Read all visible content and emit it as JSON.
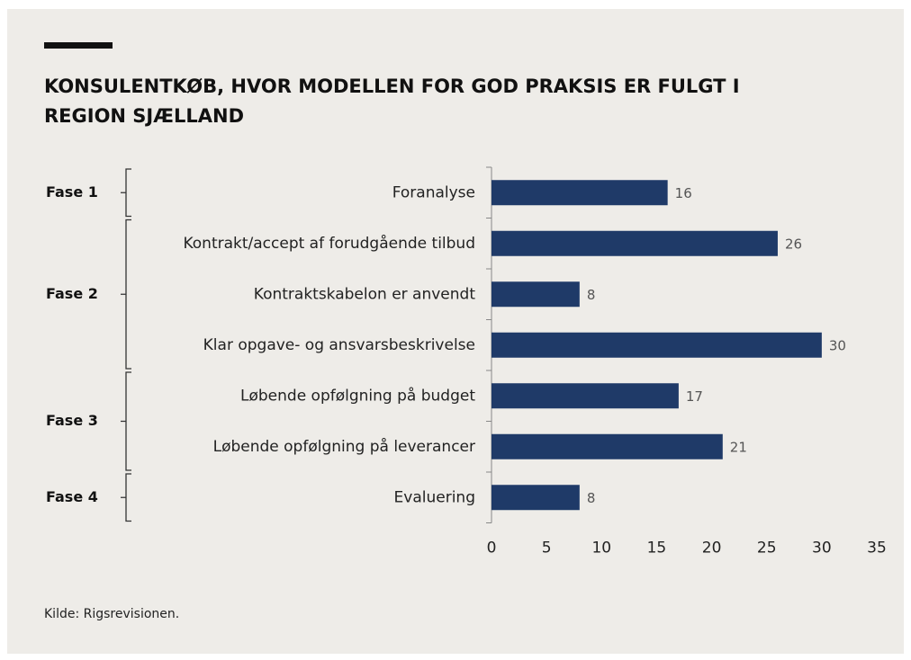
{
  "chart_data": {
    "type": "barh",
    "title": [
      "KONSULENTKØB, HVOR MODELLEN FOR GOD PRAKSIS ER FULGT I",
      "REGION SJÆLLAND"
    ],
    "categories": [
      "Foranalyse",
      "Kontrakt/accept af forudgående tilbud",
      "Kontraktskabelon er anvendt",
      "Klar opgave- og ansvarsbeskrivelse",
      "Løbende opfølgning på budget",
      "Løbende opfølgning på leverancer",
      "Evaluering"
    ],
    "values": [
      16,
      26,
      8,
      30,
      17,
      21,
      8
    ],
    "color": "#1f3a68",
    "groups": [
      {
        "label": "Fase 1",
        "count": 1
      },
      {
        "label": "Fase 2",
        "count": 3
      },
      {
        "label": "Fase 3",
        "count": 2
      },
      {
        "label": "Fase 4",
        "count": 1
      }
    ],
    "xlim": [
      0,
      35
    ],
    "xticks": [
      0,
      5,
      10,
      15,
      20,
      25,
      30,
      35
    ],
    "grid": false,
    "source": "Kilde:  Rigsrevisionen."
  }
}
